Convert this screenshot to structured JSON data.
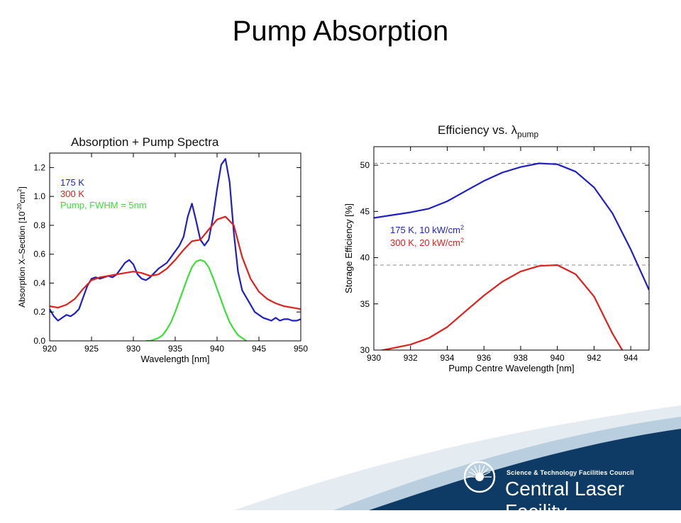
{
  "slide_title": "Pump Absorption",
  "branding": {
    "line1": "Science & Technology Facilities Council",
    "line2": "Central Laser Facility",
    "colors": {
      "navy": "#0d3b66",
      "light_blue": "#b9cfdf",
      "pale": "#dfe8ef"
    }
  },
  "chart_data": [
    {
      "type": "line",
      "title": "Absorption + Pump Spectra",
      "xlabel": "Wavelength [nm]",
      "ylabel_main": "Absorption X–Section [10",
      "ylabel_exp": "-20",
      "ylabel_unit": "cm",
      "ylabel_unit_exp": "2",
      "ylabel_close": "]",
      "xlim": [
        920,
        950
      ],
      "ylim": [
        0,
        1.3
      ],
      "xticks": [
        "920",
        "925",
        "930",
        "935",
        "940",
        "945",
        "950"
      ],
      "yticks": [
        "0.0",
        "0.2",
        "0.4",
        "0.6",
        "0.8",
        "1.0",
        "1.2"
      ],
      "xtick_values": [
        920,
        925,
        930,
        935,
        940,
        945,
        950
      ],
      "ytick_values": [
        0,
        0.2,
        0.4,
        0.6,
        0.8,
        1.0,
        1.2
      ],
      "legend": "top-left",
      "series": [
        {
          "name": "175 K",
          "color": "#1f1fc4",
          "x": [
            920,
            920.5,
            921,
            921.5,
            922,
            922.5,
            923,
            923.5,
            924,
            924.5,
            925,
            925.5,
            926,
            926.5,
            927,
            927.5,
            928,
            928.5,
            929,
            929.5,
            930,
            930.5,
            931,
            931.5,
            932,
            932.5,
            933,
            933.5,
            934,
            934.5,
            935,
            935.5,
            936,
            936.5,
            937,
            937.5,
            938,
            938.5,
            939,
            939.5,
            940,
            940.5,
            941,
            941.5,
            942,
            942.5,
            943,
            943.5,
            944,
            944.5,
            945,
            945.5,
            946,
            946.5,
            947,
            947.5,
            948,
            948.5,
            949,
            949.5,
            950
          ],
          "y": [
            0.22,
            0.17,
            0.14,
            0.16,
            0.18,
            0.17,
            0.19,
            0.22,
            0.3,
            0.38,
            0.43,
            0.44,
            0.43,
            0.44,
            0.45,
            0.44,
            0.46,
            0.5,
            0.54,
            0.56,
            0.53,
            0.46,
            0.43,
            0.42,
            0.44,
            0.47,
            0.5,
            0.52,
            0.54,
            0.58,
            0.62,
            0.66,
            0.72,
            0.86,
            0.95,
            0.83,
            0.7,
            0.66,
            0.7,
            0.85,
            1.05,
            1.22,
            1.26,
            1.1,
            0.75,
            0.48,
            0.35,
            0.3,
            0.25,
            0.2,
            0.18,
            0.16,
            0.15,
            0.14,
            0.16,
            0.14,
            0.15,
            0.15,
            0.14,
            0.14,
            0.15
          ]
        },
        {
          "name": "300 K",
          "color": "#e0201c",
          "x": [
            920,
            921,
            922,
            923,
            924,
            925,
            926,
            927,
            928,
            929,
            930,
            931,
            932,
            933,
            934,
            935,
            936,
            937,
            938,
            939,
            940,
            941,
            942,
            943,
            944,
            945,
            946,
            947,
            948,
            949,
            950
          ],
          "y": [
            0.24,
            0.23,
            0.25,
            0.29,
            0.36,
            0.42,
            0.44,
            0.45,
            0.46,
            0.47,
            0.48,
            0.47,
            0.45,
            0.46,
            0.5,
            0.56,
            0.63,
            0.69,
            0.7,
            0.77,
            0.84,
            0.86,
            0.8,
            0.58,
            0.43,
            0.34,
            0.29,
            0.26,
            0.24,
            0.23,
            0.22
          ]
        },
        {
          "name": "Pump, FWHM = 5nm",
          "color": "#3adf3a",
          "x": [
            931.5,
            932,
            932.5,
            933,
            933.5,
            934,
            934.5,
            935,
            935.5,
            936,
            936.5,
            937,
            937.5,
            938,
            938.5,
            939,
            939.5,
            940,
            940.5,
            941,
            941.5,
            942,
            942.5,
            943,
            943.5
          ],
          "y": [
            0.0,
            0.0,
            0.01,
            0.02,
            0.04,
            0.08,
            0.13,
            0.2,
            0.28,
            0.36,
            0.44,
            0.51,
            0.55,
            0.56,
            0.55,
            0.51,
            0.44,
            0.36,
            0.28,
            0.2,
            0.13,
            0.08,
            0.04,
            0.02,
            0.0
          ]
        }
      ]
    },
    {
      "type": "line",
      "title_main": "Efficiency vs. ",
      "title_symbol": "λ",
      "title_sub": "pump",
      "xlabel": "Pump Centre Wavelength [nm]",
      "ylabel": "Storage Efficiency [%]",
      "xlim": [
        930,
        945
      ],
      "ylim": [
        30,
        52
      ],
      "xticks": [
        "930",
        "932",
        "934",
        "936",
        "938",
        "940",
        "942",
        "944"
      ],
      "yticks": [
        "30",
        "35",
        "40",
        "45",
        "50"
      ],
      "xtick_values": [
        930,
        932,
        934,
        936,
        938,
        940,
        942,
        944
      ],
      "ytick_values": [
        30,
        35,
        40,
        45,
        50
      ],
      "reference_lines": [
        50.2,
        39.2
      ],
      "legend": "middle-left",
      "series": [
        {
          "name": "175 K, 10 kW/cm",
          "name_sup": "2",
          "color": "#1f1fc4",
          "x": [
            930,
            931,
            932,
            933,
            934,
            935,
            936,
            937,
            938,
            939,
            940,
            941,
            942,
            943,
            944,
            945
          ],
          "y": [
            44.3,
            44.6,
            44.9,
            45.3,
            46.1,
            47.2,
            48.3,
            49.2,
            49.8,
            50.2,
            50.1,
            49.3,
            47.6,
            44.8,
            40.9,
            36.5
          ]
        },
        {
          "name": "300 K, 20 kW/cm",
          "name_sup": "2",
          "color": "#e0201c",
          "x": [
            930,
            931,
            932,
            933,
            934,
            935,
            936,
            937,
            938,
            939,
            940,
            941,
            942,
            943,
            943.6
          ],
          "y": [
            29.8,
            30.2,
            30.6,
            31.3,
            32.5,
            34.2,
            35.9,
            37.4,
            38.5,
            39.1,
            39.2,
            38.2,
            35.8,
            31.8,
            29.8
          ]
        }
      ]
    }
  ]
}
